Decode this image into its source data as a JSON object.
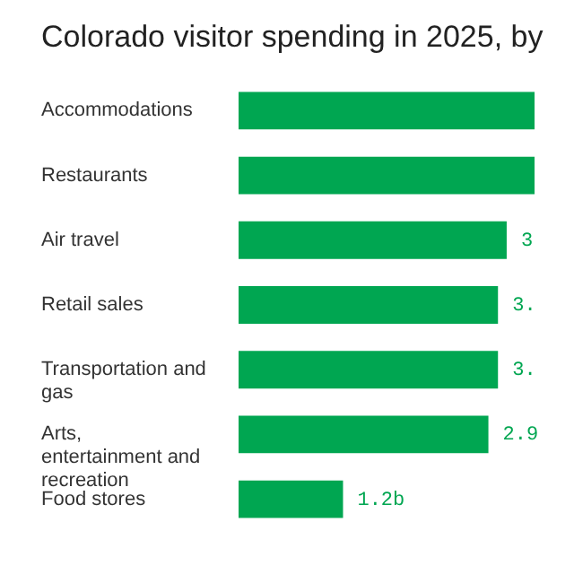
{
  "chart_data": {
    "type": "bar",
    "orientation": "horizontal",
    "title": "Colorado visitor spending in 2025, by",
    "categories": [
      "Accommodations",
      "Restaurants",
      "Air travel",
      "Retail sales",
      "Transportation and gas",
      "Arts, entertainment and recreation",
      "Food stores"
    ],
    "values": [
      3.4,
      3.4,
      3.08,
      2.98,
      2.98,
      2.87,
      1.2
    ],
    "value_labels": [
      null,
      null,
      "3",
      "3.",
      "3.",
      "2.9",
      "1.2b"
    ],
    "color": "#00a651",
    "xlim": [
      0,
      3.4
    ],
    "grid": false
  }
}
